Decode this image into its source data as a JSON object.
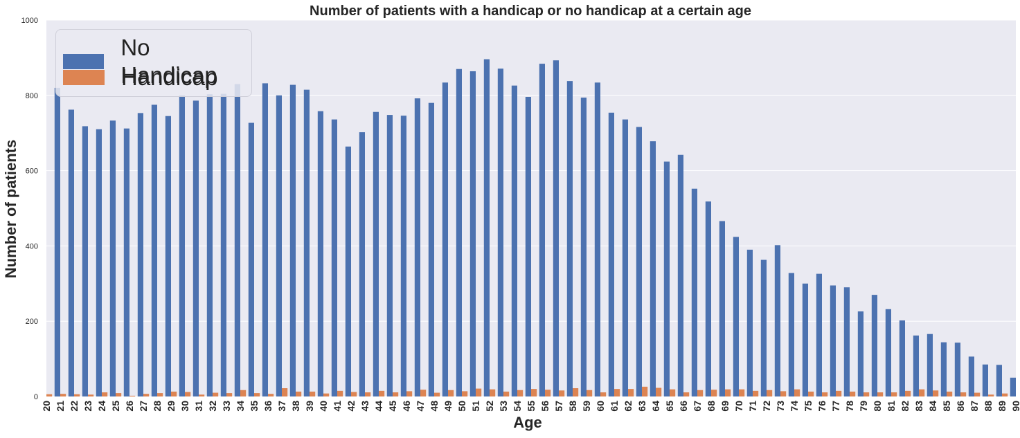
{
  "chart_data": {
    "type": "bar",
    "title": "Number of patients with a handicap or no handicap at a certain age",
    "xlabel": "Age",
    "ylabel": "Number of patients",
    "ylim": [
      0,
      1000
    ],
    "yticks": [
      0,
      200,
      400,
      600,
      800,
      1000
    ],
    "grid": true,
    "legend_position": "top-left",
    "categories": [
      "20",
      "21",
      "22",
      "23",
      "24",
      "25",
      "26",
      "27",
      "28",
      "29",
      "30",
      "31",
      "32",
      "33",
      "34",
      "35",
      "36",
      "37",
      "38",
      "39",
      "40",
      "41",
      "42",
      "43",
      "44",
      "45",
      "46",
      "47",
      "48",
      "49",
      "50",
      "51",
      "52",
      "53",
      "54",
      "55",
      "56",
      "57",
      "58",
      "59",
      "60",
      "61",
      "62",
      "63",
      "64",
      "65",
      "66",
      "67",
      "68",
      "69",
      "70",
      "71",
      "72",
      "73",
      "74",
      "75",
      "76",
      "77",
      "78",
      "79",
      "80",
      "81",
      "82",
      "83",
      "84",
      "85",
      "86",
      "87",
      "88",
      "89",
      "90"
    ],
    "series": [
      {
        "name": "No Handicap",
        "color": "#4c72b0",
        "values": [
          0,
          820,
          762,
          718,
          710,
          733,
          712,
          753,
          775,
          745,
          800,
          786,
          803,
          804,
          830,
          727,
          832,
          800,
          828,
          815,
          758,
          736,
          664,
          702,
          756,
          748,
          746,
          792,
          780,
          834,
          870,
          864,
          896,
          871,
          826,
          796,
          884,
          893,
          838,
          794,
          834,
          754,
          736,
          716,
          678,
          624,
          642,
          552,
          518,
          466,
          424,
          390,
          363,
          402,
          328,
          300,
          326,
          295,
          290,
          226,
          270,
          232,
          202,
          162,
          166,
          144,
          143,
          106,
          85,
          84,
          50
        ]
      },
      {
        "name": "Handicap",
        "color": "#dd8452",
        "values": [
          6,
          7,
          6,
          5,
          11,
          9,
          2,
          7,
          9,
          13,
          12,
          5,
          10,
          9,
          17,
          9,
          7,
          22,
          13,
          13,
          8,
          15,
          12,
          11,
          15,
          11,
          14,
          18,
          10,
          17,
          14,
          21,
          19,
          13,
          17,
          20,
          18,
          16,
          22,
          17,
          11,
          20,
          20,
          26,
          23,
          19,
          11,
          17,
          18,
          19,
          19,
          15,
          17,
          14,
          19,
          13,
          11,
          15,
          13,
          11,
          11,
          11,
          15,
          19,
          16,
          13,
          11,
          10,
          5,
          8,
          0
        ]
      }
    ]
  }
}
